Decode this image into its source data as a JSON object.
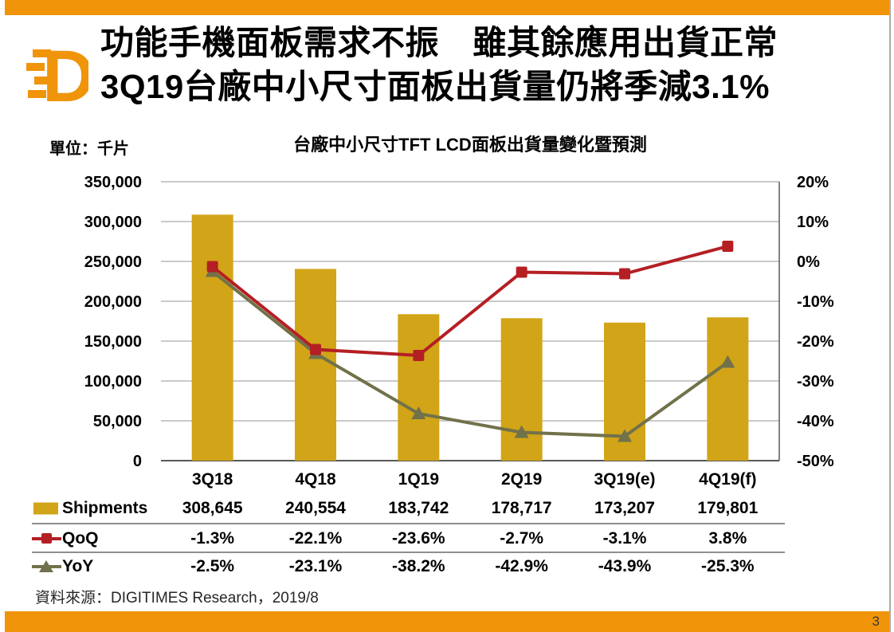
{
  "header": {
    "title_line1": "功能手機面板需求不振　雖其餘應用出貨正常",
    "title_line2": "3Q19台廠中小尺寸面板出貨量仍將季減3.1%"
  },
  "chart_data": {
    "type": "bar",
    "title": "台廠中小尺寸TFT LCD面板出貨量變化暨預測",
    "unit_label": "單位：千片",
    "categories": [
      "3Q18",
      "4Q18",
      "1Q19",
      "2Q19",
      "3Q19(e)",
      "4Q19(f)"
    ],
    "series": [
      {
        "name": "Shipments",
        "kind": "bar",
        "axis": "left",
        "marker": "swatch",
        "color": "#D2A418",
        "values": [
          308645,
          240554,
          183742,
          178717,
          173207,
          179801
        ]
      },
      {
        "name": "QoQ",
        "kind": "line",
        "axis": "right",
        "marker": "square",
        "color": "#B41F24",
        "values": [
          -1.3,
          -22.1,
          -23.6,
          -2.7,
          -3.1,
          3.8
        ]
      },
      {
        "name": "YoY",
        "kind": "line",
        "axis": "right",
        "marker": "triangle",
        "color": "#71724A",
        "values": [
          -2.5,
          -23.1,
          -38.2,
          -42.9,
          -43.9,
          -25.3
        ]
      }
    ],
    "left_axis": {
      "min": 0,
      "max": 350000,
      "tick_labels": [
        "350,000",
        "300,000",
        "250,000",
        "200,000",
        "150,000",
        "100,000",
        "50,000",
        "0"
      ]
    },
    "right_axis": {
      "min": -50,
      "max": 20,
      "tick_labels": [
        "20%",
        "10%",
        "0%",
        "-10%",
        "-20%",
        "-30%",
        "-40%",
        "-50%"
      ]
    },
    "grid": true,
    "legend_position": "table-left"
  },
  "table": {
    "rows": [
      {
        "label": "Shipments",
        "marker": "bar-swatch",
        "values": [
          "308,645",
          "240,554",
          "183,742",
          "178,717",
          "173,207",
          "179,801"
        ]
      },
      {
        "label": "QoQ",
        "marker": "line-square",
        "values": [
          "-1.3%",
          "-22.1%",
          "-23.6%",
          "-2.7%",
          "-3.1%",
          "3.8%"
        ]
      },
      {
        "label": "YoY",
        "marker": "line-triangle",
        "values": [
          "-2.5%",
          "-23.1%",
          "-38.2%",
          "-42.9%",
          "-43.9%",
          "-25.3%"
        ]
      }
    ]
  },
  "source": {
    "text": "資料來源：DIGITIMES Research，2019/8"
  },
  "footer": {
    "page_number": "3"
  },
  "colors": {
    "accent_orange": "#F0940A",
    "bar_gold": "#D2A418",
    "qoq_red": "#B41F24",
    "yoy_olive": "#71724A",
    "gridline": "#ABABAB",
    "axis_line": "#595959"
  }
}
